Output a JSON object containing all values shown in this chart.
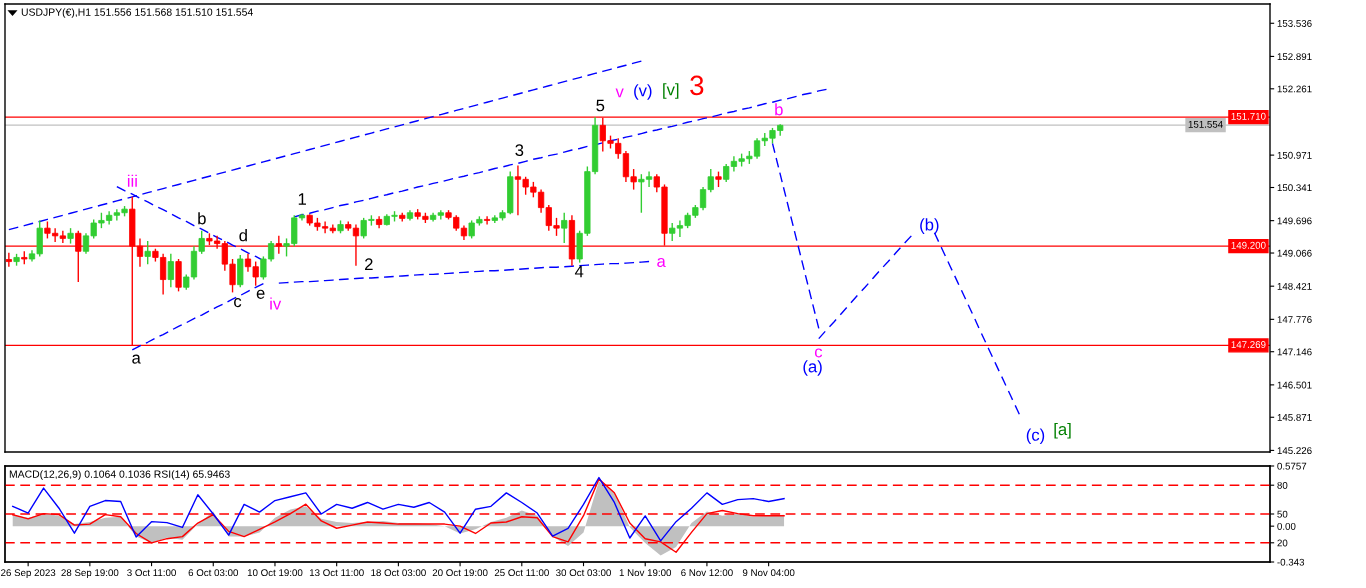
{
  "chart_data": [
    {
      "type": "candlestick",
      "title": "USDJPY(€),H1 151.556 151.568 151.510 151.554",
      "categories": [
        null,
        null,
        null,
        null,
        null,
        null,
        null,
        null,
        null,
        null,
        null,
        null,
        null,
        null,
        null,
        null,
        null,
        null,
        null,
        null,
        null,
        null,
        null,
        null,
        null,
        null,
        null,
        null,
        null,
        null,
        null,
        null,
        null,
        null,
        null,
        null,
        null,
        null,
        null,
        null,
        null,
        null,
        null,
        null,
        null,
        null,
        null,
        null,
        null,
        null,
        null,
        null,
        null,
        null,
        null,
        null,
        null,
        null,
        null,
        null,
        null,
        null,
        null,
        null,
        null,
        null,
        null,
        null,
        null,
        null,
        null,
        null,
        null,
        null,
        null,
        null,
        null,
        null,
        null,
        null,
        null,
        null,
        null,
        null,
        null,
        null,
        null,
        null,
        null,
        null,
        null,
        null,
        null,
        null,
        null,
        null,
        null,
        null,
        null,
        null,
        null,
        null,
        null,
        null,
        null,
        null,
        null,
        null,
        null,
        null,
        null,
        null,
        null,
        null,
        null,
        null,
        null,
        null,
        null,
        null,
        null,
        null,
        null,
        null,
        null,
        null,
        null,
        null,
        null,
        null,
        null,
        null,
        null,
        null,
        null,
        null,
        null,
        null,
        null,
        null,
        null,
        null,
        null,
        null,
        null,
        null,
        null,
        null,
        null,
        null,
        null,
        null,
        null,
        null,
        null,
        null,
        null,
        null,
        null,
        null,
        null,
        null,
        null,
        null
      ],
      "ohlc": [
        [
          148.94,
          149.07,
          148.8,
          148.9
        ],
        [
          148.9,
          149.05,
          148.82,
          148.98
        ],
        [
          148.98,
          149.1,
          148.85,
          148.95
        ],
        [
          148.95,
          149.12,
          148.9,
          149.05
        ],
        [
          149.05,
          149.7,
          149.0,
          149.55
        ],
        [
          149.55,
          149.68,
          149.35,
          149.45
        ],
        [
          149.45,
          149.55,
          149.28,
          149.4
        ],
        [
          149.4,
          149.5,
          149.26,
          149.35
        ],
        [
          149.35,
          149.55,
          149.25,
          149.45
        ],
        [
          149.45,
          149.5,
          148.5,
          149.1
        ],
        [
          149.1,
          149.45,
          149.05,
          149.4
        ],
        [
          149.4,
          149.72,
          149.35,
          149.65
        ],
        [
          149.65,
          149.85,
          149.55,
          149.7
        ],
        [
          149.7,
          149.88,
          149.62,
          149.8
        ],
        [
          149.8,
          149.92,
          149.7,
          149.85
        ],
        [
          149.85,
          149.98,
          149.78,
          149.92
        ],
        [
          149.92,
          150.16,
          147.27,
          149.2
        ],
        [
          149.2,
          149.35,
          148.8,
          149.0
        ],
        [
          149.0,
          149.3,
          148.85,
          149.1
        ],
        [
          149.1,
          149.15,
          148.9,
          148.98
        ],
        [
          148.98,
          149.05,
          148.26,
          148.55
        ],
        [
          148.55,
          149.05,
          148.4,
          148.9
        ],
        [
          148.9,
          148.95,
          148.32,
          148.4
        ],
        [
          148.4,
          148.65,
          148.35,
          148.6
        ],
        [
          148.6,
          149.2,
          148.55,
          149.1
        ],
        [
          149.1,
          149.5,
          149.05,
          149.35
        ],
        [
          149.35,
          149.45,
          149.22,
          149.3
        ],
        [
          149.3,
          149.4,
          149.15,
          149.25
        ],
        [
          149.25,
          149.3,
          148.72,
          148.85
        ],
        [
          148.85,
          148.95,
          148.3,
          148.45
        ],
        [
          148.45,
          149.03,
          148.4,
          148.95
        ],
        [
          148.95,
          149.05,
          148.7,
          148.8
        ],
        [
          148.8,
          148.9,
          148.43,
          148.6
        ],
        [
          148.6,
          149.0,
          148.55,
          148.95
        ],
        [
          148.95,
          149.3,
          148.9,
          149.25
        ],
        [
          149.25,
          149.4,
          149.05,
          149.2
        ],
        [
          149.2,
          149.35,
          149.0,
          149.25
        ],
        [
          149.25,
          149.8,
          149.2,
          149.75
        ],
        [
          149.75,
          149.83,
          149.7,
          149.8
        ],
        [
          149.8,
          149.82,
          149.6,
          149.65
        ],
        [
          149.65,
          149.75,
          149.5,
          149.58
        ],
        [
          149.58,
          149.68,
          149.45,
          149.55
        ],
        [
          149.55,
          149.62,
          149.45,
          149.5
        ],
        [
          149.5,
          149.7,
          149.45,
          149.62
        ],
        [
          149.62,
          149.68,
          149.5,
          149.55
        ],
        [
          149.55,
          149.62,
          148.82,
          149.4
        ],
        [
          149.4,
          149.75,
          149.35,
          149.7
        ],
        [
          149.7,
          149.8,
          149.6,
          149.72
        ],
        [
          149.72,
          149.78,
          149.55,
          149.62
        ],
        [
          149.62,
          149.82,
          149.6,
          149.78
        ],
        [
          149.78,
          149.88,
          149.68,
          149.8
        ],
        [
          149.8,
          149.85,
          149.68,
          149.74
        ],
        [
          149.74,
          149.9,
          149.7,
          149.85
        ],
        [
          149.85,
          149.92,
          149.72,
          149.78
        ],
        [
          149.78,
          149.85,
          149.65,
          149.72
        ],
        [
          149.72,
          149.85,
          149.68,
          149.8
        ],
        [
          149.8,
          149.9,
          149.72,
          149.85
        ],
        [
          149.85,
          149.9,
          149.72,
          149.76
        ],
        [
          149.76,
          149.8,
          149.5,
          149.55
        ],
        [
          149.55,
          149.6,
          149.32,
          149.4
        ],
        [
          149.4,
          149.7,
          149.35,
          149.65
        ],
        [
          149.65,
          149.78,
          149.6,
          149.72
        ],
        [
          149.72,
          149.78,
          149.62,
          149.7
        ],
        [
          149.7,
          149.8,
          149.65,
          149.75
        ],
        [
          149.75,
          149.9,
          149.7,
          149.85
        ],
        [
          149.85,
          150.65,
          149.82,
          150.55
        ],
        [
          150.55,
          150.77,
          149.8,
          150.5
        ],
        [
          150.5,
          150.55,
          150.2,
          150.35
        ],
        [
          150.35,
          150.45,
          150.15,
          150.25
        ],
        [
          150.25,
          150.3,
          149.85,
          149.95
        ],
        [
          149.95,
          150.0,
          149.5,
          149.6
        ],
        [
          149.6,
          149.75,
          149.4,
          149.55
        ],
        [
          149.55,
          149.85,
          149.26,
          149.7
        ],
        [
          149.7,
          149.8,
          148.82,
          148.95
        ],
        [
          148.95,
          149.5,
          148.88,
          149.45
        ],
        [
          149.45,
          150.75,
          149.4,
          150.65
        ],
        [
          150.65,
          151.71,
          150.6,
          151.55
        ],
        [
          151.55,
          151.7,
          151.04,
          151.25
        ],
        [
          151.25,
          151.35,
          151.1,
          151.2
        ],
        [
          151.2,
          151.3,
          150.9,
          151.0
        ],
        [
          151.0,
          151.05,
          150.45,
          150.55
        ],
        [
          150.55,
          150.7,
          150.3,
          150.45
        ],
        [
          150.45,
          150.6,
          149.85,
          150.5
        ],
        [
          150.5,
          150.65,
          150.35,
          150.55
        ],
        [
          150.55,
          150.6,
          150.25,
          150.35
        ],
        [
          150.35,
          150.4,
          149.21,
          149.45
        ],
        [
          149.45,
          149.65,
          149.3,
          149.55
        ],
        [
          149.55,
          149.7,
          149.38,
          149.6
        ],
        [
          149.6,
          149.85,
          149.55,
          149.8
        ],
        [
          149.8,
          150.0,
          149.75,
          149.95
        ],
        [
          149.95,
          150.35,
          149.9,
          150.3
        ],
        [
          150.3,
          150.7,
          150.25,
          150.55
        ],
        [
          150.55,
          150.65,
          150.35,
          150.5
        ],
        [
          150.5,
          150.8,
          150.45,
          150.75
        ],
        [
          150.75,
          150.95,
          150.65,
          150.85
        ],
        [
          150.85,
          151.0,
          150.75,
          150.9
        ],
        [
          150.9,
          151.05,
          150.8,
          150.95
        ],
        [
          150.95,
          151.3,
          150.9,
          151.25
        ],
        [
          151.25,
          151.4,
          151.15,
          151.3
        ],
        [
          151.3,
          151.5,
          151.2,
          151.45
        ],
        [
          151.45,
          151.57,
          151.35,
          151.55
        ],
        null,
        null,
        null,
        null,
        null,
        null,
        null,
        null,
        null,
        null,
        null,
        null,
        null,
        null,
        null,
        null,
        null,
        null,
        null,
        null,
        null,
        null,
        null,
        null,
        null,
        null,
        null,
        null,
        null,
        null,
        null,
        null,
        null,
        null,
        null,
        null,
        null,
        null,
        null,
        null,
        null,
        null,
        null,
        null,
        null,
        null,
        null,
        null,
        null,
        null,
        null,
        null,
        null,
        null,
        null,
        null,
        null,
        null,
        null,
        null,
        null,
        null,
        null
      ],
      "colors": [
        "#ff0000",
        "#32cd32",
        "#ff0000",
        "#32cd32",
        "#32cd32",
        "#ff0000",
        "#ff0000",
        "#ff0000",
        "#32cd32",
        "#ff0000",
        "#32cd32",
        "#32cd32",
        "#32cd32",
        "#32cd32",
        "#32cd32",
        "#32cd32",
        "#ff0000",
        "#ff0000",
        "#32cd32",
        "#ff0000",
        "#ff0000",
        "#32cd32",
        "#ff0000",
        "#32cd32",
        "#32cd32",
        "#32cd32",
        "#ff0000",
        "#ff0000",
        "#ff0000",
        "#ff0000",
        "#32cd32",
        "#ff0000",
        "#ff0000",
        "#32cd32",
        "#32cd32",
        "#ff0000",
        "#32cd32",
        "#32cd32",
        "#32cd32",
        "#ff0000",
        "#ff0000",
        "#ff0000",
        "#ff0000",
        "#32cd32",
        "#ff0000",
        "#ff0000",
        "#32cd32",
        "#32cd32",
        "#ff0000",
        "#32cd32",
        "#32cd32",
        "#ff0000",
        "#32cd32",
        "#ff0000",
        "#ff0000",
        "#32cd32",
        "#32cd32",
        "#ff0000",
        "#ff0000",
        "#ff0000",
        "#32cd32",
        "#32cd32",
        "#ff0000",
        "#32cd32",
        "#32cd32",
        "#32cd32",
        "#ff0000",
        "#ff0000",
        "#ff0000",
        "#ff0000",
        "#ff0000",
        "#ff0000",
        "#32cd32",
        "#ff0000",
        "#32cd32",
        "#32cd32",
        "#32cd32",
        "#ff0000",
        "#ff0000",
        "#ff0000",
        "#ff0000",
        "#ff0000",
        "#32cd32",
        "#32cd32",
        "#ff0000",
        "#ff0000",
        "#32cd32",
        "#32cd32",
        "#32cd32",
        "#32cd32",
        "#32cd32",
        "#32cd32",
        "#ff0000",
        "#32cd32",
        "#32cd32",
        "#32cd32",
        "#32cd32",
        "#32cd32",
        "#32cd32",
        "#32cd32",
        "#32cd32",
        null,
        null,
        null,
        null,
        null,
        null,
        null,
        null,
        null,
        null,
        null,
        null,
        null,
        null,
        null,
        null,
        null,
        null,
        null,
        null,
        null,
        null,
        null,
        null,
        null,
        null,
        null,
        null,
        null,
        null,
        null,
        null,
        null,
        null,
        null,
        null,
        null,
        null,
        null,
        null,
        null,
        null,
        null,
        null,
        null,
        null,
        null,
        null,
        null,
        null,
        null,
        null,
        null,
        null,
        null,
        null,
        null,
        null,
        null,
        null,
        null,
        null,
        null
      ],
      "ylim": [
        145.195,
        153.911
      ],
      "yticks": [
        153.536,
        152.891,
        152.261,
        150.971,
        150.341,
        149.696,
        149.066,
        148.421,
        147.776,
        147.146,
        146.501,
        145.871,
        145.226
      ],
      "tick_labels": "y",
      "series": [
        {
          "type": "line",
          "color": "#0000ff",
          "line_style": "dashed",
          "values": [
            149.52,
            149.56,
            149.6,
            149.64,
            149.68,
            149.72,
            149.76,
            149.8,
            149.84,
            149.88,
            149.92,
            149.96,
            150.0,
            150.04,
            150.08,
            150.12,
            150.16,
            150.2,
            150.24,
            150.28,
            150.32,
            150.36,
            150.4,
            150.44,
            150.48,
            150.52,
            150.56,
            150.6,
            150.64,
            150.68,
            150.72,
            150.76,
            150.8,
            150.84,
            150.88,
            150.92,
            150.96,
            151.0,
            151.04,
            151.08,
            151.12,
            151.16,
            151.2,
            151.24,
            151.28,
            151.32,
            151.36,
            151.4,
            151.44,
            151.48,
            151.52,
            151.56,
            151.6,
            151.64,
            151.68,
            151.72,
            151.76,
            151.8,
            151.84,
            151.88,
            151.92,
            151.96,
            152.0,
            152.04,
            152.08,
            152.12,
            152.16,
            152.2,
            152.24,
            152.28,
            152.32,
            152.36,
            152.4,
            152.44,
            152.48,
            152.52,
            152.56,
            152.6,
            152.64,
            152.68,
            152.72,
            152.76,
            152.8,
            null,
            null,
            null,
            null,
            null,
            null,
            null,
            null,
            null,
            null,
            null,
            null,
            null,
            null,
            null,
            null,
            null,
            null,
            null,
            null,
            null,
            null,
            147.4,
            147.57,
            147.73,
            147.9,
            148.07,
            148.24,
            148.4,
            148.57,
            148.74,
            148.9,
            149.07,
            149.24,
            149.4,
            null,
            null,
            149.46,
            149.14,
            148.82,
            148.5,
            148.18,
            147.86,
            147.53,
            147.21,
            146.89,
            146.57,
            146.25,
            145.93,
            null,
            null,
            null,
            null,
            null,
            null,
            null,
            null,
            null,
            null,
            null,
            null,
            null,
            null,
            null,
            null,
            null,
            null,
            null,
            null,
            null,
            null,
            null,
            null,
            null,
            null,
            null,
            null,
            null,
            null,
            null,
            null
          ]
        },
        {
          "type": "line",
          "color": "#0000ff",
          "line_style": "dashed",
          "values": [
            null,
            null,
            null,
            null,
            null,
            null,
            null,
            null,
            null,
            null,
            null,
            null,
            null,
            null,
            150.36,
            150.28,
            150.21,
            150.13,
            150.06,
            149.98,
            149.91,
            149.83,
            149.75,
            149.68,
            149.6,
            149.53,
            149.45,
            149.37,
            149.3,
            149.22,
            149.15,
            149.07,
            149.0,
            148.92,
            null,
            null,
            null,
            null,
            null,
            null,
            null,
            null,
            null,
            null,
            null,
            null,
            null,
            null,
            null,
            null,
            null,
            null,
            null,
            null,
            null,
            null,
            null,
            null,
            null,
            null,
            null,
            null,
            null,
            null,
            null,
            null,
            null,
            null,
            null,
            null,
            null,
            null,
            null,
            null,
            null,
            null,
            null,
            null,
            null,
            null,
            null,
            null,
            null,
            null,
            null,
            null,
            null,
            null,
            null,
            null,
            null,
            null,
            null,
            null,
            null,
            null,
            null,
            null,
            null,
            151.2,
            150.6,
            150.0,
            149.4,
            148.8,
            148.2,
            147.6,
            null,
            null,
            null,
            null,
            null,
            null,
            null,
            null,
            null,
            null,
            null,
            null,
            null,
            null,
            null,
            null,
            null,
            null,
            null,
            null,
            null,
            null,
            null,
            null,
            null,
            null,
            null,
            null,
            null,
            null,
            null,
            null,
            null,
            null,
            null,
            null,
            null,
            null,
            null,
            null,
            null,
            null,
            null,
            null,
            null,
            null,
            null,
            null,
            null,
            null,
            null,
            null,
            null,
            null,
            null,
            null,
            null,
            null
          ]
        },
        {
          "type": "line",
          "color": "#0000ff",
          "line_style": "dashed",
          "values": [
            null,
            null,
            null,
            null,
            null,
            null,
            null,
            null,
            null,
            null,
            null,
            null,
            null,
            null,
            null,
            null,
            147.18,
            147.26,
            147.33,
            147.41,
            147.48,
            147.56,
            147.64,
            147.71,
            147.79,
            147.86,
            147.94,
            148.02,
            148.09,
            148.17,
            148.24,
            148.32,
            148.4,
            148.47,
            null,
            148.48,
            148.49,
            148.5,
            148.51,
            148.51,
            148.52,
            148.53,
            148.54,
            148.55,
            148.56,
            148.57,
            148.58,
            148.58,
            148.59,
            148.6,
            148.61,
            148.62,
            148.63,
            148.64,
            148.65,
            148.65,
            148.66,
            148.67,
            148.68,
            148.69,
            148.7,
            148.71,
            148.72,
            148.72,
            148.73,
            148.74,
            148.75,
            148.76,
            148.77,
            148.78,
            148.79,
            148.79,
            148.8,
            148.81,
            148.82,
            148.83,
            148.84,
            148.85,
            148.86,
            148.86,
            148.87,
            148.88,
            148.89,
            148.9,
            null,
            null,
            null,
            null,
            null,
            null,
            null,
            null,
            null,
            null,
            null,
            null,
            null,
            null,
            null,
            null,
            null,
            null,
            null,
            null,
            null,
            null,
            null,
            null,
            null,
            null,
            null,
            null,
            null,
            null,
            null,
            null,
            null,
            null,
            null,
            null,
            null,
            null,
            null,
            null,
            null,
            null,
            null,
            null,
            null,
            null,
            null,
            null,
            null,
            null,
            null,
            null,
            null,
            null,
            null,
            null,
            null,
            null,
            null,
            null,
            null,
            null,
            null,
            null,
            null,
            null,
            null,
            null,
            null,
            null,
            null,
            null,
            null,
            null,
            null,
            null,
            null,
            null,
            null,
            null
          ]
        },
        {
          "type": "line",
          "color": "#0000ff",
          "line_style": "dashed",
          "values": [
            null,
            null,
            null,
            null,
            null,
            null,
            null,
            null,
            null,
            null,
            null,
            null,
            null,
            null,
            null,
            null,
            null,
            null,
            null,
            null,
            null,
            null,
            null,
            null,
            null,
            null,
            null,
            null,
            null,
            null,
            null,
            null,
            null,
            null,
            null,
            null,
            null,
            149.77,
            149.81,
            149.84,
            149.88,
            149.91,
            149.95,
            149.99,
            150.02,
            150.06,
            150.09,
            150.13,
            150.17,
            150.2,
            150.24,
            150.27,
            150.31,
            150.35,
            150.38,
            150.42,
            150.45,
            150.49,
            150.53,
            150.56,
            150.6,
            150.63,
            150.67,
            150.71,
            150.74,
            150.78,
            150.81,
            150.85,
            150.89,
            150.92,
            150.96,
            150.99,
            151.03,
            151.07,
            151.1,
            151.14,
            151.17,
            151.21,
            151.25,
            151.28,
            151.32,
            151.35,
            151.39,
            151.43,
            151.46,
            151.5,
            151.53,
            151.57,
            151.61,
            151.64,
            151.68,
            151.71,
            151.75,
            151.79,
            151.82,
            151.86,
            151.89,
            151.93,
            151.97,
            152.0,
            152.04,
            152.07,
            152.11,
            152.15,
            152.18,
            152.22,
            152.25,
            null,
            null,
            null,
            null,
            null,
            null,
            null,
            null,
            null,
            null,
            null,
            null,
            null,
            null,
            null,
            null,
            null,
            null,
            null,
            null,
            null,
            null,
            null,
            null,
            null,
            null,
            null,
            null,
            null,
            null,
            null,
            null,
            null,
            null,
            null,
            null,
            null,
            null,
            null,
            null,
            null,
            null,
            null,
            null,
            null,
            null,
            null,
            null,
            null,
            null,
            null,
            null,
            null,
            null,
            null,
            null,
            null
          ]
        }
      ],
      "ref_lines": [
        {
          "axis": "y",
          "value": 151.71,
          "label": "151.710",
          "color": "#ff0000"
        },
        {
          "axis": "y",
          "value": 151.554,
          "label": "151.554",
          "color": "#c0c0c0"
        },
        {
          "axis": "y",
          "value": 149.2,
          "label": "149.200",
          "color": "#ff0000"
        },
        {
          "axis": "y",
          "value": 147.269,
          "label": "147.269",
          "color": "#ff0000"
        }
      ],
      "annotations": [
        "a",
        "b",
        "c",
        "d",
        "e",
        "1",
        "2",
        "3",
        "4",
        "5",
        "iii",
        "iv",
        "v",
        "a",
        "b",
        "c",
        "(v)",
        "(a)",
        "(b)",
        "(c)",
        "[v]",
        "[a]",
        "3"
      ]
    },
    {
      "type": "line",
      "title": "MACD(12,26,9) 0.1064 0.1036 RSI(14) 65.9463",
      "categories": [
        null,
        "26 Sep 2023",
        null,
        null,
        null,
        "28 Sep 19:00",
        null,
        null,
        null,
        "3 Oct 11:00",
        null,
        null,
        null,
        "6 Oct 03:00",
        null,
        null,
        null,
        "10 Oct 19:00",
        null,
        null,
        null,
        "13 Oct 11:00",
        null,
        null,
        null,
        "18 Oct 03:00",
        null,
        null,
        null,
        "20 Oct 19:00",
        null,
        null,
        null,
        "25 Oct 11:00",
        null,
        null,
        null,
        "30 Oct 03:00",
        null,
        null,
        null,
        "1 Nov 19:00",
        null,
        null,
        null,
        "6 Nov 12:00",
        null,
        null,
        null,
        "9 Nov 04:00",
        null,
        null,
        null,
        null,
        null,
        null,
        null,
        null,
        null,
        null,
        null,
        null,
        null,
        null,
        null,
        null,
        null,
        null,
        null,
        null,
        null,
        null,
        null,
        null,
        null,
        null,
        null,
        null,
        null,
        null,
        null,
        null
      ],
      "ylim": [
        -0.343,
        0.5757
      ],
      "yticks": [
        0.5757,
        {
          "value": 0,
          "label": "0.00"
        },
        -0.343
      ],
      "y2lim": [
        0,
        100
      ],
      "y2ticks": [
        20,
        50,
        80
      ],
      "series": [
        {
          "type": "area",
          "color": "#c0c0c0",
          "values": [
            0.11,
            0.08,
            0.12,
            0.1,
            0.02,
            0.04,
            0.08,
            0.09,
            -0.1,
            -0.16,
            -0.11,
            -0.13,
            0.02,
            0.14,
            -0.1,
            -0.1,
            -0.06,
            0.08,
            0.16,
            0.19,
            0.07,
            0.04,
            0.03,
            0.04,
            0.05,
            0.03,
            0.03,
            0.02,
            0.0,
            -0.07,
            -0.03,
            0.04,
            0.08,
            0.15,
            0.1,
            -0.1,
            -0.19,
            -0.06,
            0.43,
            0.32,
            -0.01,
            -0.16,
            -0.28,
            -0.2,
            0.03,
            0.14,
            0.1,
            0.12,
            0.09,
            0.1,
            0.11,
            null,
            null,
            null,
            null,
            null,
            null,
            null,
            null,
            null,
            null,
            null,
            null,
            null,
            null,
            null,
            null,
            null,
            null,
            null,
            null,
            null,
            null,
            null,
            null,
            null,
            null,
            null,
            null,
            null,
            null,
            null
          ]
        },
        {
          "type": "line",
          "color": "#ff0000",
          "values": [
            0.11,
            0.07,
            0.12,
            0.11,
            0.01,
            0.02,
            0.11,
            0.09,
            -0.07,
            -0.16,
            -0.12,
            -0.1,
            0.03,
            0.11,
            -0.05,
            -0.1,
            -0.03,
            0.04,
            0.12,
            0.21,
            0.05,
            -0.02,
            0.01,
            0.04,
            0.03,
            0.02,
            0.02,
            0.02,
            0.02,
            0.0,
            -0.07,
            0.03,
            0.04,
            0.09,
            0.08,
            -0.1,
            -0.15,
            0.1,
            0.45,
            0.32,
            0.03,
            -0.12,
            -0.15,
            -0.25,
            -0.06,
            0.12,
            0.15,
            0.12,
            0.1,
            0.1,
            0.1,
            null,
            null,
            null,
            null,
            null,
            null,
            null,
            null,
            null,
            null,
            null,
            null,
            null,
            null,
            null,
            null,
            null,
            null,
            null,
            null,
            null,
            null,
            null,
            null,
            null,
            null,
            null,
            null,
            null,
            null,
            null
          ]
        },
        {
          "type": "line",
          "color": "#0000ff",
          "axis": "y2",
          "values": [
            58,
            51,
            77,
            56,
            30,
            58,
            64,
            63,
            26,
            42,
            41,
            36,
            70,
            50,
            28,
            60,
            52,
            64,
            68,
            72,
            50,
            60,
            56,
            62,
            55,
            60,
            57,
            62,
            52,
            30,
            55,
            58,
            72,
            62,
            51,
            27,
            35,
            60,
            88,
            62,
            25,
            48,
            22,
            42,
            56,
            72,
            60,
            65,
            66,
            63,
            66,
            null,
            null,
            null,
            null,
            null,
            null,
            null,
            null,
            null,
            null,
            null,
            null,
            null,
            null,
            null,
            null,
            null,
            null,
            null,
            null,
            null,
            null,
            null,
            null,
            null,
            null,
            null,
            null,
            null,
            null,
            null
          ]
        }
      ],
      "ref_lines": [
        {
          "axis": "y2",
          "value": 80,
          "color": "#ff0000",
          "line_style": "dashed"
        },
        {
          "axis": "y2",
          "value": 50,
          "color": "#ff0000",
          "line_style": "dashed"
        },
        {
          "axis": "y2",
          "value": 20,
          "color": "#ff0000",
          "line_style": "dashed"
        }
      ]
    }
  ]
}
